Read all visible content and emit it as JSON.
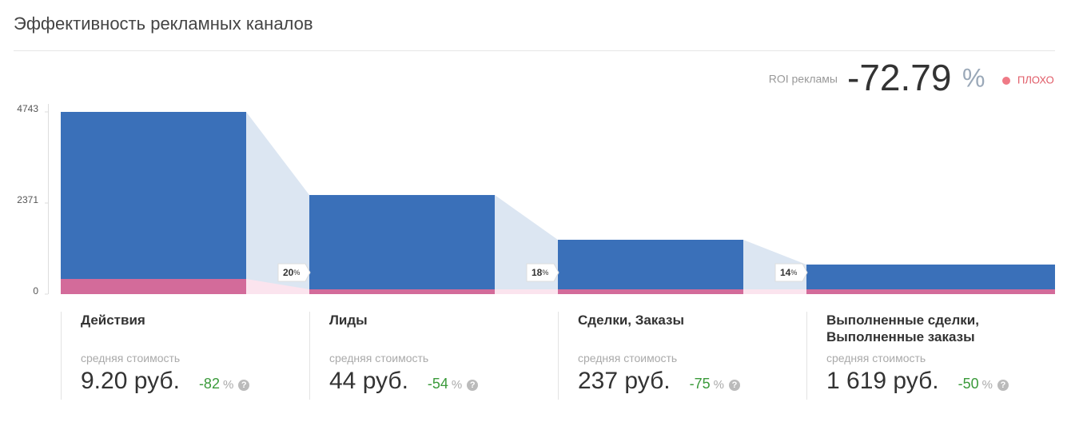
{
  "header": {
    "title": "Эффективность рекламных каналов"
  },
  "roi": {
    "label": "ROI рекламы",
    "value": "-72.79",
    "unit": "%",
    "status": "ПЛОХО"
  },
  "chart_data": {
    "type": "funnel-bar",
    "categories": [
      "Действия",
      "Лиды",
      "Сделки, Заказы",
      "Выполненные сделки, Выполненные заказы"
    ],
    "series": [
      {
        "color": "#3a70b9",
        "values": [
          4743,
          2580,
          1415,
          770
        ]
      },
      {
        "color": "#d36b9a",
        "values": [
          395,
          125,
          125,
          125
        ]
      }
    ],
    "conversions": [
      20,
      18,
      14
    ],
    "conversion_unit": "%",
    "ylim": [
      0,
      4743
    ],
    "yticks": [
      0,
      2371,
      4743
    ]
  },
  "cards": {
    "caption": "средняя стоимость",
    "unit": "%",
    "items": [
      {
        "cost": "9.20 руб.",
        "change": -82
      },
      {
        "cost": "44 руб.",
        "change": -54
      },
      {
        "cost": "237 руб.",
        "change": -75
      },
      {
        "cost": "1 619 руб.",
        "change": -50
      }
    ]
  }
}
